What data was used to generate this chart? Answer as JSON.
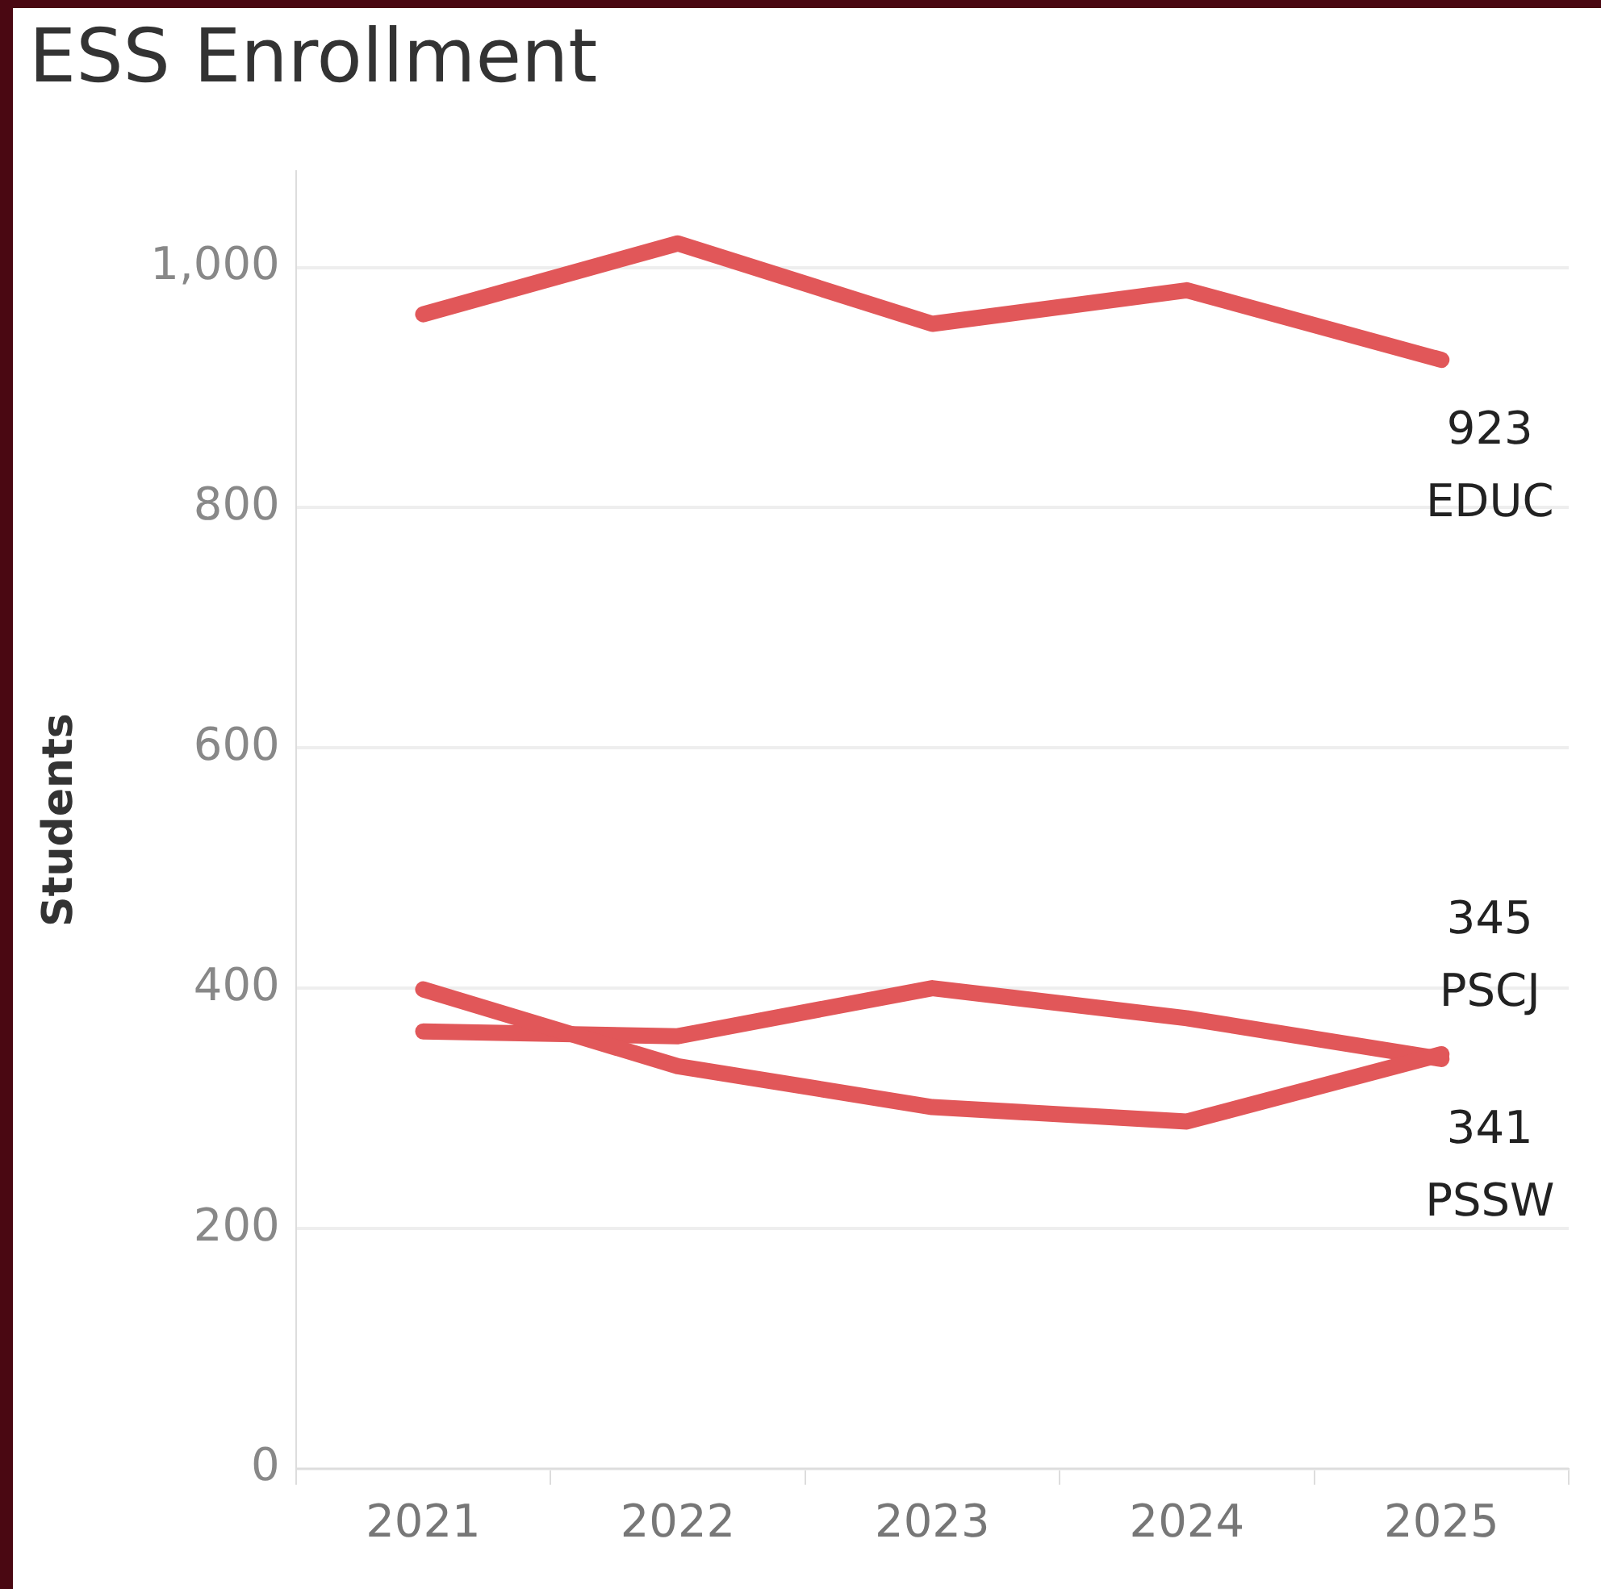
{
  "chart_data": {
    "type": "line",
    "title": "ESS Enrollment",
    "ylabel": "Students",
    "categories": [
      "2021",
      "2022",
      "2023",
      "2024",
      "2025"
    ],
    "series": [
      {
        "name": "EDUC",
        "color": "#e15759",
        "values": [
          961,
          1020,
          953,
          981,
          923
        ],
        "value_labels": [
          null,
          null,
          null,
          null,
          "923"
        ]
      },
      {
        "name": "PSCJ",
        "color": "#e15759",
        "values": [
          399,
          335,
          301,
          289,
          345
        ],
        "value_labels": [
          null,
          null,
          null,
          null,
          "345"
        ]
      },
      {
        "name": "PSSW",
        "color": "#e15759",
        "values": [
          364,
          360,
          400,
          375,
          341
        ],
        "value_labels": [
          null,
          null,
          null,
          null,
          "341"
        ]
      }
    ],
    "ylim": [
      0,
      1080
    ],
    "yticks": [
      0,
      {
        "value": 200,
        "label": "200"
      },
      {
        "value": 400,
        "label": "400"
      },
      {
        "value": 600,
        "label": "600"
      },
      {
        "value": 800,
        "label": "800"
      },
      {
        "value": 1000,
        "label": "1,000"
      }
    ],
    "grid": "y",
    "legend": false,
    "marker": "none",
    "line_style": "solid"
  }
}
